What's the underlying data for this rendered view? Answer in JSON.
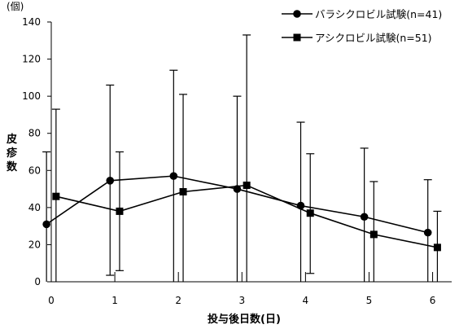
{
  "chart_data": {
    "type": "line",
    "title": "",
    "xlabel": "投与後日数(日)",
    "ylabel": "皮疹数",
    "y_unit": "(個)",
    "x": [
      0,
      1,
      2,
      3,
      4,
      5,
      6
    ],
    "xlim": [
      0,
      6.3
    ],
    "ylim": [
      0,
      140
    ],
    "yticks": [
      0,
      20,
      40,
      60,
      80,
      100,
      120,
      140
    ],
    "xticks": [
      0,
      1,
      2,
      3,
      4,
      5,
      6
    ],
    "grid": false,
    "legend_position": "top-right",
    "series": [
      {
        "name": "バラシクロビル試験(n=41)",
        "marker": "circle",
        "values": [
          31,
          54.5,
          57,
          50,
          41,
          35,
          26.5
        ],
        "error_upper": [
          70,
          106,
          114,
          100,
          86,
          72,
          55
        ],
        "error_lower": [
          0,
          3.5,
          0,
          0,
          0,
          0,
          0
        ]
      },
      {
        "name": "アシクロビル試験(n=51)",
        "marker": "square",
        "values": [
          46,
          38,
          48.5,
          52,
          37,
          25.5,
          18.5
        ],
        "error_upper": [
          93,
          70,
          101,
          133,
          69,
          54,
          38
        ],
        "error_lower": [
          0,
          6,
          0,
          0,
          4.5,
          0,
          0
        ]
      }
    ]
  }
}
